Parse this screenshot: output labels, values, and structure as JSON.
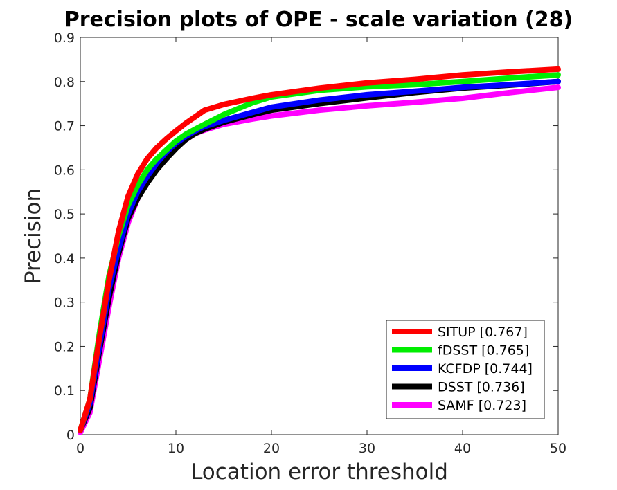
{
  "chart_data": {
    "type": "line",
    "title": "Precision plots of OPE - scale variation (28)",
    "xlabel": "Location error threshold",
    "ylabel": "Precision",
    "xlim": [
      0,
      50
    ],
    "ylim": [
      0,
      0.9
    ],
    "xticks": [
      0,
      10,
      20,
      30,
      40,
      50
    ],
    "xtick_labels": [
      "0",
      "10",
      "20",
      "30",
      "40",
      "50"
    ],
    "yticks": [
      0,
      0.1,
      0.2,
      0.3,
      0.4,
      0.5,
      0.6,
      0.7,
      0.8,
      0.9
    ],
    "ytick_labels": [
      "0",
      "0.1",
      "0.2",
      "0.3",
      "0.4",
      "0.5",
      "0.6",
      "0.7",
      "0.8",
      "0.9"
    ],
    "grid": false,
    "legend_position": "bottom-right",
    "series": [
      {
        "name": "SITUP [0.767]",
        "color": "#ff0000",
        "x": [
          0,
          1,
          2,
          3,
          4,
          5,
          6,
          7,
          8,
          9,
          10,
          11,
          12,
          13,
          15,
          18,
          20,
          25,
          30,
          35,
          40,
          45,
          50
        ],
        "y": [
          0.01,
          0.08,
          0.22,
          0.35,
          0.46,
          0.54,
          0.59,
          0.625,
          0.65,
          0.67,
          0.688,
          0.705,
          0.72,
          0.735,
          0.748,
          0.762,
          0.77,
          0.785,
          0.797,
          0.805,
          0.815,
          0.822,
          0.828
        ]
      },
      {
        "name": "fDSST [0.765]",
        "color": "#00ee00",
        "x": [
          0,
          1,
          2,
          3,
          4,
          5,
          6,
          7,
          8,
          9,
          10,
          11,
          12,
          13,
          15,
          18,
          20,
          25,
          30,
          35,
          40,
          45,
          50
        ],
        "y": [
          0.01,
          0.08,
          0.23,
          0.36,
          0.45,
          0.52,
          0.565,
          0.6,
          0.625,
          0.645,
          0.665,
          0.68,
          0.692,
          0.703,
          0.725,
          0.752,
          0.765,
          0.78,
          0.788,
          0.793,
          0.8,
          0.808,
          0.815
        ]
      },
      {
        "name": "KCFDP [0.744]",
        "color": "#0000ff",
        "x": [
          0,
          1,
          2,
          3,
          4,
          5,
          6,
          7,
          8,
          9,
          10,
          11,
          12,
          13,
          15,
          18,
          20,
          25,
          30,
          35,
          40,
          45,
          50
        ],
        "y": [
          0.01,
          0.07,
          0.2,
          0.33,
          0.42,
          0.5,
          0.55,
          0.585,
          0.615,
          0.64,
          0.66,
          0.675,
          0.688,
          0.698,
          0.712,
          0.73,
          0.742,
          0.758,
          0.77,
          0.778,
          0.787,
          0.793,
          0.8
        ]
      },
      {
        "name": "DSST [0.736]",
        "color": "#000000",
        "x": [
          0,
          1,
          2,
          3,
          4,
          5,
          6,
          7,
          8,
          9,
          10,
          11,
          12,
          13,
          15,
          18,
          20,
          25,
          30,
          35,
          40,
          45,
          50
        ],
        "y": [
          0.01,
          0.06,
          0.19,
          0.31,
          0.41,
          0.49,
          0.535,
          0.57,
          0.6,
          0.625,
          0.648,
          0.668,
          0.682,
          0.692,
          0.708,
          0.725,
          0.735,
          0.75,
          0.763,
          0.775,
          0.785,
          0.792,
          0.8
        ]
      },
      {
        "name": "SAMF [0.723]",
        "color": "#ff00ff",
        "x": [
          0,
          1,
          2,
          3,
          4,
          5,
          6,
          7,
          8,
          9,
          10,
          11,
          12,
          13,
          15,
          18,
          20,
          25,
          30,
          35,
          40,
          45,
          50
        ],
        "y": [
          0.005,
          0.05,
          0.17,
          0.29,
          0.4,
          0.48,
          0.535,
          0.575,
          0.605,
          0.63,
          0.652,
          0.668,
          0.682,
          0.69,
          0.703,
          0.715,
          0.722,
          0.735,
          0.745,
          0.753,
          0.762,
          0.775,
          0.787
        ]
      }
    ]
  }
}
